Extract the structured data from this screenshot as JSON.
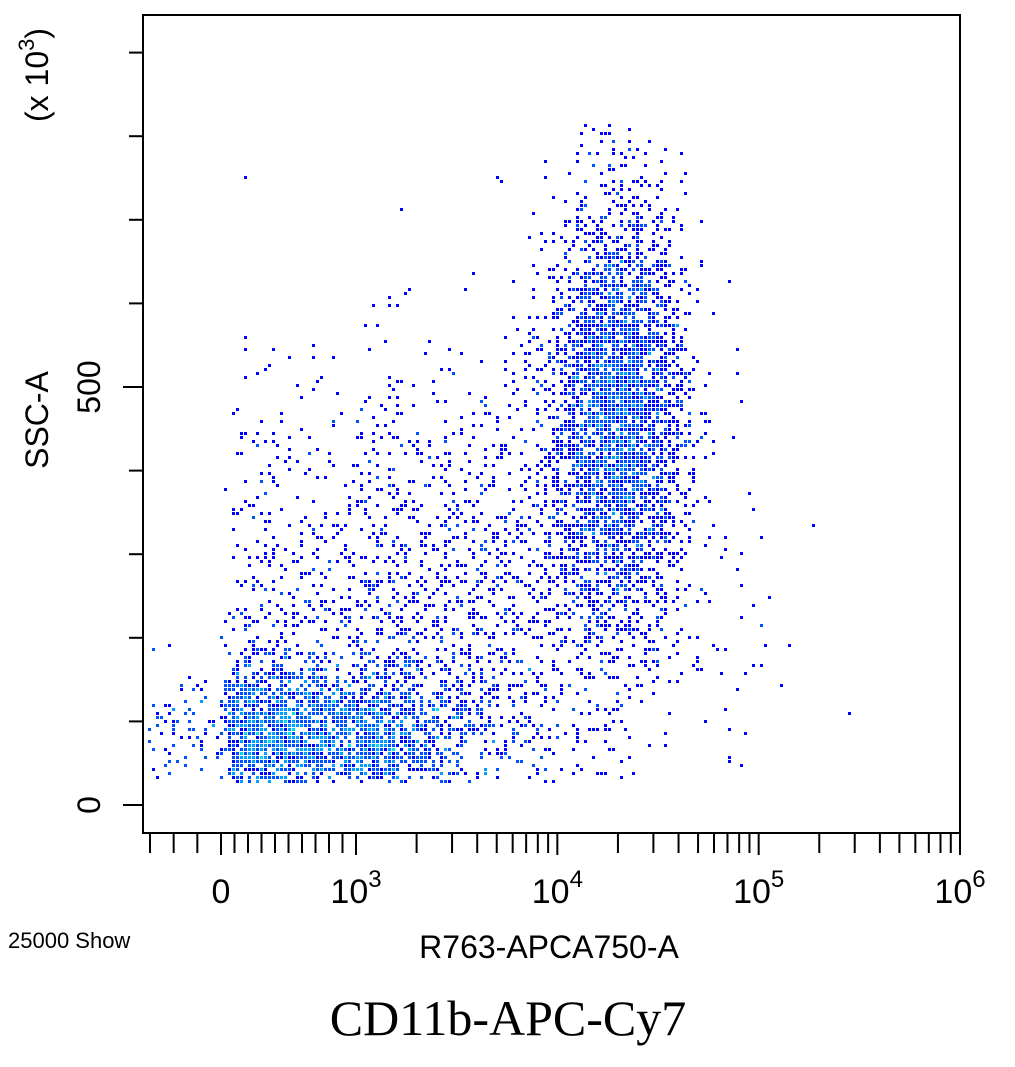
{
  "chart_data": {
    "type": "scatter",
    "title": "",
    "xlabel": "R763-APCA750-A",
    "ylabel": "SSC-A",
    "y_multiplier_label": "(x 10",
    "y_multiplier_exponent": "3",
    "x_scale": "biexponential",
    "xlim": [
      -300,
      1000000
    ],
    "ylim": [
      -20,
      950
    ],
    "x_ticks": [
      {
        "value": 0,
        "base": "0",
        "exp": ""
      },
      {
        "value": 1000,
        "base": "10",
        "exp": "3"
      },
      {
        "value": 10000,
        "base": "10",
        "exp": "4"
      },
      {
        "value": 100000,
        "base": "10",
        "exp": "5"
      },
      {
        "value": 1000000,
        "base": "10",
        "exp": "6"
      }
    ],
    "y_ticks": [
      {
        "value": 0,
        "label": "0"
      },
      {
        "value": 500,
        "label": "500"
      }
    ],
    "y_minor_ticks": [
      100,
      200,
      300,
      400,
      600,
      700,
      800,
      900
    ],
    "event_count_label": "25000 Show",
    "density_colors": [
      "#0000ff",
      "#0050ff",
      "#00a0ff",
      "#00e0e0",
      "#30ff90",
      "#c0ff00",
      "#ffff00"
    ],
    "populations": [
      {
        "x_center": 700,
        "x_spread_decades": 0.45,
        "y_center": 80,
        "y_spread": 45,
        "weight": 0.42
      },
      {
        "x_center": 20000,
        "x_spread_decades": 0.17,
        "y_center": 470,
        "y_spread": 130,
        "weight": 0.38
      },
      {
        "x_center": 3000,
        "x_spread_decades": 0.6,
        "y_center": 250,
        "y_spread": 140,
        "weight": 0.2
      }
    ]
  },
  "caption": "CD11b-APC-Cy7"
}
